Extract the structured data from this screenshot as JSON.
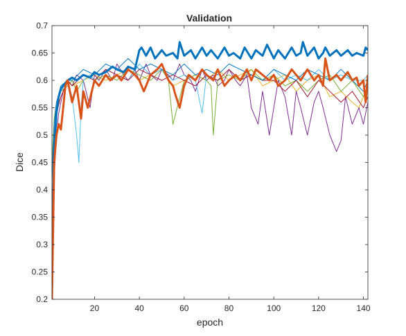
{
  "chart_data": {
    "type": "line",
    "title": "Validation",
    "xlabel": "epoch",
    "ylabel": "Dice",
    "xlim": [
      1,
      142
    ],
    "ylim": [
      0.2,
      0.7
    ],
    "xticks": [
      20,
      40,
      60,
      80,
      100,
      120,
      140
    ],
    "yticks": [
      0.2,
      0.25,
      0.3,
      0.35,
      0.4,
      0.45,
      0.5,
      0.55,
      0.6,
      0.65,
      0.7
    ],
    "ytick_labels": [
      "0.2",
      "0.25",
      "0.3",
      "0.35",
      "0.4",
      "0.45",
      "0.5",
      "0.55",
      "0.6",
      "0.65",
      "0.7"
    ],
    "grid": false,
    "box": true,
    "series": [
      {
        "color": "#0072BD",
        "width": 3,
        "x": [
          1,
          2,
          3,
          4,
          5,
          6,
          7,
          8,
          10,
          12,
          15,
          18,
          20,
          22,
          25,
          28,
          30,
          33,
          35,
          38,
          40,
          41,
          43,
          45,
          47,
          50,
          52,
          55,
          57,
          58,
          60,
          63,
          65,
          68,
          70,
          72,
          75,
          78,
          80,
          82,
          85,
          87,
          90,
          92,
          95,
          97,
          100,
          102,
          105,
          108,
          110,
          112,
          113,
          115,
          118,
          120,
          122,
          123,
          125,
          128,
          130,
          133,
          135,
          137,
          140,
          141,
          142
        ],
        "y": [
          0.22,
          0.47,
          0.54,
          0.57,
          0.585,
          0.59,
          0.595,
          0.6,
          0.605,
          0.6,
          0.61,
          0.605,
          0.615,
          0.61,
          0.615,
          0.625,
          0.62,
          0.615,
          0.625,
          0.62,
          0.655,
          0.66,
          0.645,
          0.66,
          0.64,
          0.655,
          0.645,
          0.65,
          0.64,
          0.67,
          0.645,
          0.655,
          0.64,
          0.66,
          0.645,
          0.655,
          0.64,
          0.66,
          0.645,
          0.65,
          0.64,
          0.66,
          0.64,
          0.655,
          0.645,
          0.665,
          0.64,
          0.655,
          0.64,
          0.66,
          0.645,
          0.65,
          0.67,
          0.645,
          0.66,
          0.64,
          0.65,
          0.66,
          0.645,
          0.655,
          0.645,
          0.655,
          0.645,
          0.65,
          0.645,
          0.66,
          0.655
        ]
      },
      {
        "color": "#D95319",
        "width": 3,
        "x": [
          1,
          2,
          3,
          4,
          5,
          6,
          7,
          8,
          10,
          12,
          13,
          14,
          15,
          17,
          20,
          22,
          25,
          27,
          30,
          32,
          35,
          38,
          40,
          42,
          45,
          48,
          50,
          53,
          55,
          56,
          58,
          60,
          62,
          65,
          68,
          70,
          73,
          75,
          78,
          80,
          83,
          85,
          88,
          90,
          92,
          95,
          98,
          100,
          102,
          105,
          108,
          110,
          112,
          115,
          118,
          120,
          122,
          123,
          125,
          128,
          130,
          133,
          135,
          137,
          138,
          140,
          141,
          142
        ],
        "y": [
          0.2,
          0.45,
          0.5,
          0.52,
          0.51,
          0.55,
          0.59,
          0.6,
          0.56,
          0.59,
          0.56,
          0.53,
          0.58,
          0.55,
          0.6,
          0.59,
          0.61,
          0.6,
          0.61,
          0.6,
          0.62,
          0.61,
          0.6,
          0.58,
          0.61,
          0.62,
          0.63,
          0.6,
          0.59,
          0.575,
          0.55,
          0.59,
          0.61,
          0.6,
          0.62,
          0.61,
          0.6,
          0.62,
          0.59,
          0.6,
          0.61,
          0.6,
          0.62,
          0.6,
          0.62,
          0.61,
          0.6,
          0.61,
          0.59,
          0.6,
          0.62,
          0.61,
          0.6,
          0.62,
          0.6,
          0.61,
          0.59,
          0.64,
          0.6,
          0.61,
          0.6,
          0.615,
          0.6,
          0.605,
          0.59,
          0.6,
          0.56,
          0.61
        ]
      },
      {
        "color": "#EDB120",
        "width": 1,
        "x": [
          1,
          2,
          3,
          5,
          8,
          10,
          15,
          20,
          25,
          30,
          35,
          40,
          45,
          50,
          55,
          60,
          65,
          70,
          75,
          80,
          85,
          90,
          95,
          100,
          105,
          110,
          115,
          120,
          125,
          130,
          135,
          138,
          140,
          142
        ],
        "y": [
          0.4,
          0.5,
          0.55,
          0.57,
          0.6,
          0.59,
          0.6,
          0.61,
          0.6,
          0.61,
          0.62,
          0.6,
          0.61,
          0.62,
          0.59,
          0.6,
          0.61,
          0.6,
          0.62,
          0.6,
          0.61,
          0.62,
          0.59,
          0.6,
          0.61,
          0.58,
          0.6,
          0.61,
          0.57,
          0.58,
          0.56,
          0.55,
          0.57,
          0.58
        ]
      },
      {
        "color": "#7E2F8E",
        "width": 1,
        "x": [
          1,
          2,
          3,
          4,
          6,
          8,
          10,
          12,
          15,
          18,
          20,
          22,
          25,
          28,
          30,
          33,
          35,
          38,
          40,
          43,
          45,
          48,
          50,
          53,
          55,
          58,
          60,
          63,
          65,
          68,
          70,
          73,
          75,
          78,
          80,
          83,
          85,
          88,
          90,
          93,
          95,
          98,
          100,
          102,
          105,
          108,
          110,
          112,
          115,
          118,
          120,
          122,
          125,
          128,
          130,
          132,
          135,
          138,
          140,
          142
        ],
        "y": [
          0.3,
          0.42,
          0.5,
          0.54,
          0.58,
          0.6,
          0.59,
          0.61,
          0.6,
          0.55,
          0.61,
          0.6,
          0.62,
          0.6,
          0.63,
          0.61,
          0.6,
          0.62,
          0.6,
          0.63,
          0.61,
          0.6,
          0.62,
          0.61,
          0.6,
          0.63,
          0.61,
          0.6,
          0.58,
          0.62,
          0.6,
          0.61,
          0.59,
          0.6,
          0.62,
          0.6,
          0.59,
          0.61,
          0.55,
          0.52,
          0.58,
          0.5,
          0.55,
          0.6,
          0.57,
          0.5,
          0.58,
          0.55,
          0.5,
          0.56,
          0.58,
          0.55,
          0.5,
          0.47,
          0.49,
          0.57,
          0.52,
          0.55,
          0.52,
          0.56
        ]
      },
      {
        "color": "#77AC30",
        "width": 1,
        "x": [
          1,
          2,
          3,
          5,
          8,
          10,
          12,
          15,
          18,
          20,
          25,
          30,
          35,
          40,
          45,
          50,
          53,
          55,
          60,
          65,
          70,
          72,
          73,
          75,
          80,
          85,
          90,
          95,
          100,
          105,
          110,
          115,
          120,
          125,
          130,
          135,
          140,
          142
        ],
        "y": [
          0.45,
          0.53,
          0.56,
          0.58,
          0.59,
          0.6,
          0.58,
          0.6,
          0.61,
          0.6,
          0.61,
          0.6,
          0.62,
          0.61,
          0.6,
          0.62,
          0.6,
          0.52,
          0.6,
          0.61,
          0.6,
          0.59,
          0.5,
          0.6,
          0.61,
          0.6,
          0.62,
          0.6,
          0.61,
          0.59,
          0.6,
          0.58,
          0.6,
          0.61,
          0.58,
          0.6,
          0.57,
          0.59
        ]
      },
      {
        "color": "#4DBEEE",
        "width": 1,
        "x": [
          1,
          2,
          3,
          5,
          8,
          10,
          12,
          13,
          14,
          15,
          18,
          20,
          25,
          30,
          35,
          40,
          45,
          50,
          55,
          60,
          65,
          68,
          70,
          75,
          80,
          85,
          90,
          95,
          100,
          105,
          110,
          115,
          120,
          125,
          130,
          135,
          140,
          142
        ],
        "y": [
          0.38,
          0.5,
          0.55,
          0.58,
          0.6,
          0.57,
          0.5,
          0.45,
          0.55,
          0.6,
          0.61,
          0.6,
          0.62,
          0.61,
          0.6,
          0.63,
          0.61,
          0.62,
          0.6,
          0.61,
          0.6,
          0.54,
          0.61,
          0.6,
          0.62,
          0.6,
          0.61,
          0.6,
          0.62,
          0.6,
          0.61,
          0.6,
          0.62,
          0.6,
          0.61,
          0.6,
          0.6,
          0.61
        ]
      },
      {
        "color": "#A2142F",
        "width": 1,
        "x": [
          1,
          2,
          3,
          5,
          8,
          10,
          15,
          20,
          25,
          30,
          35,
          40,
          45,
          50,
          55,
          60,
          65,
          70,
          75,
          80,
          85,
          90,
          95,
          100,
          105,
          110,
          115,
          120,
          125,
          130,
          135,
          140,
          142
        ],
        "y": [
          0.35,
          0.48,
          0.54,
          0.57,
          0.6,
          0.59,
          0.61,
          0.6,
          0.62,
          0.61,
          0.6,
          0.62,
          0.61,
          0.6,
          0.61,
          0.6,
          0.59,
          0.61,
          0.6,
          0.62,
          0.6,
          0.61,
          0.6,
          0.6,
          0.58,
          0.6,
          0.57,
          0.6,
          0.58,
          0.56,
          0.58,
          0.55,
          0.57
        ]
      },
      {
        "color": "#0072BD",
        "width": 1,
        "x": [
          1,
          2,
          3,
          5,
          8,
          10,
          15,
          20,
          25,
          30,
          35,
          40,
          45,
          50,
          55,
          60,
          65,
          70,
          75,
          80,
          85,
          90,
          95,
          100,
          105,
          110,
          115,
          120,
          125,
          130,
          135,
          140,
          142
        ],
        "y": [
          0.42,
          0.52,
          0.56,
          0.59,
          0.6,
          0.6,
          0.62,
          0.61,
          0.63,
          0.62,
          0.64,
          0.62,
          0.63,
          0.62,
          0.61,
          0.63,
          0.61,
          0.62,
          0.61,
          0.63,
          0.62,
          0.61,
          0.6,
          0.62,
          0.61,
          0.6,
          0.62,
          0.61,
          0.6,
          0.62,
          0.6,
          0.58,
          0.6
        ]
      }
    ]
  }
}
